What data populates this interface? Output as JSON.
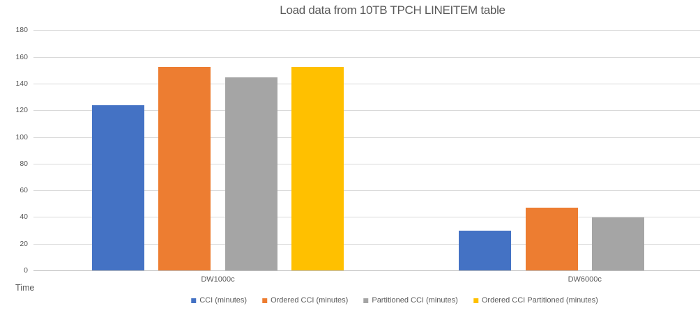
{
  "chart_data": {
    "type": "bar",
    "title": "Load data from 10TB TPCH LINEITEM table",
    "categories": [
      "DW1000c",
      "DW6000c"
    ],
    "series": [
      {
        "name": "CCI (minutes)",
        "color": "#4472C4",
        "values": [
          124,
          30
        ]
      },
      {
        "name": "Ordered CCI (minutes)",
        "color": "#ED7D31",
        "values": [
          153,
          47
        ]
      },
      {
        "name": "Partitioned CCI (minutes)",
        "color": "#A5A5A5",
        "values": [
          145,
          40
        ]
      },
      {
        "name": "Ordered CCI Partitioned (minutes)",
        "color": "#FFC000",
        "values": [
          153,
          null
        ]
      }
    ],
    "xlabel": "",
    "ylabel": "Time",
    "ylim": [
      0,
      180
    ],
    "yticks": [
      0,
      20,
      40,
      60,
      80,
      100,
      120,
      140,
      160,
      180
    ],
    "grid": true,
    "legend_position": "bottom",
    "background_color": "#FFFFFF",
    "text_color": "#595959",
    "gridline_color": "#D9D9D9",
    "axis_line_color": "#BFBFBF"
  }
}
